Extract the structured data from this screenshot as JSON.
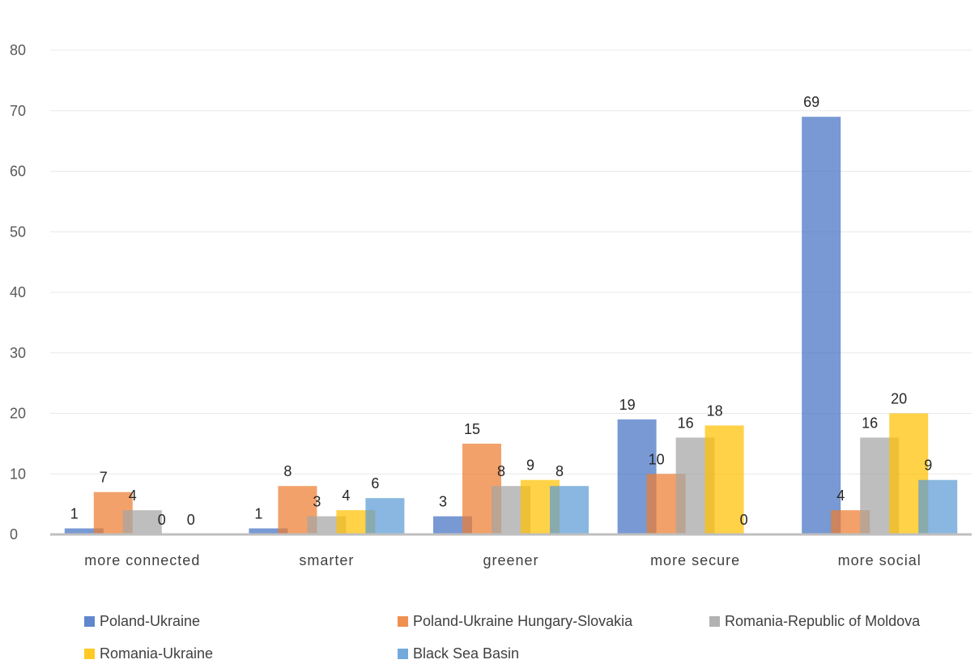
{
  "title": "",
  "colors": {
    "Poland-Ukraine": "#4472c4",
    "Poland-Ukraine Hungary-Slovakia": "#ed7d31",
    "Romania-Republic of Moldova": "#a5a5a5",
    "Romania-Ukraine": "#ffc000",
    "Black Sea Basin": "#5b9bd5"
  },
  "chart_data": {
    "type": "bar",
    "title": "",
    "categories": [
      "more connected",
      "smarter",
      "greener",
      "more secure",
      "more social"
    ],
    "series": [
      {
        "name": "Poland-Ukraine",
        "values": [
          1,
          1,
          3,
          19,
          69
        ]
      },
      {
        "name": "Poland-Ukraine Hungary-Slovakia",
        "values": [
          7,
          8,
          15,
          10,
          4
        ]
      },
      {
        "name": "Romania-Republic of Moldova",
        "values": [
          4,
          3,
          8,
          16,
          16
        ]
      },
      {
        "name": "Romania-Ukraine",
        "values": [
          0,
          4,
          9,
          18,
          20
        ]
      },
      {
        "name": "Black Sea Basin",
        "values": [
          0,
          6,
          8,
          0,
          9
        ]
      }
    ],
    "ylim": [
      0,
      80
    ],
    "yticks": [
      0,
      10,
      20,
      30,
      40,
      50,
      60,
      70,
      80
    ],
    "xlabel": "",
    "ylabel": "",
    "grid": true,
    "data_labels": true,
    "legend_position": "bottom"
  }
}
